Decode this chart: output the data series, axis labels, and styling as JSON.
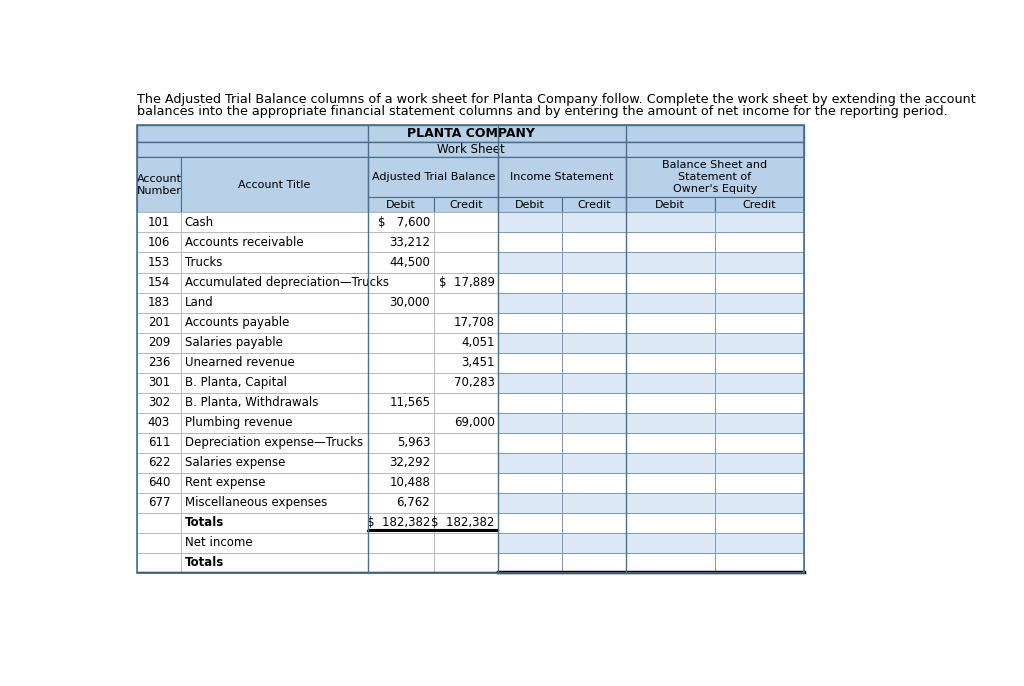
{
  "intro_text_line1": "The Adjusted Trial Balance columns of a work sheet for Planta Company follow. Complete the work sheet by extending the account",
  "intro_text_line2": "balances into the appropriate financial statement columns and by entering the amount of net income for the reporting period.",
  "company_title": "PLANTA COMPANY",
  "sheet_title": "Work Sheet",
  "header_bg": "#b8d0e8",
  "row_bg_white": "#ffffff",
  "row_bg_blue": "#dce8f5",
  "border_outer": "#4a6f8a",
  "border_inner_light": "#7a9ab8",
  "border_inner_gray": "#aaaaaa",
  "text_color": "#000000",
  "rows": [
    {
      "num": "101",
      "title": "Cash",
      "atb_d": "$   7,600",
      "atb_c": "",
      "bold": false
    },
    {
      "num": "106",
      "title": "Accounts receivable",
      "atb_d": "33,212",
      "atb_c": "",
      "bold": false
    },
    {
      "num": "153",
      "title": "Trucks",
      "atb_d": "44,500",
      "atb_c": "",
      "bold": false
    },
    {
      "num": "154",
      "title": "Accumulated depreciation—Trucks",
      "atb_d": "",
      "atb_c": "$  17,889",
      "bold": false
    },
    {
      "num": "183",
      "title": "Land",
      "atb_d": "30,000",
      "atb_c": "",
      "bold": false
    },
    {
      "num": "201",
      "title": "Accounts payable",
      "atb_d": "",
      "atb_c": "17,708",
      "bold": false
    },
    {
      "num": "209",
      "title": "Salaries payable",
      "atb_d": "",
      "atb_c": "4,051",
      "bold": false
    },
    {
      "num": "236",
      "title": "Unearned revenue",
      "atb_d": "",
      "atb_c": "3,451",
      "bold": false
    },
    {
      "num": "301",
      "title": "B. Planta, Capital",
      "atb_d": "",
      "atb_c": "70,283",
      "bold": false
    },
    {
      "num": "302",
      "title": "B. Planta, Withdrawals",
      "atb_d": "11,565",
      "atb_c": "",
      "bold": false
    },
    {
      "num": "403",
      "title": "Plumbing revenue",
      "atb_d": "",
      "atb_c": "69,000",
      "bold": false
    },
    {
      "num": "611",
      "title": "Depreciation expense—Trucks",
      "atb_d": "5,963",
      "atb_c": "",
      "bold": false
    },
    {
      "num": "622",
      "title": "Salaries expense",
      "atb_d": "32,292",
      "atb_c": "",
      "bold": false
    },
    {
      "num": "640",
      "title": "Rent expense",
      "atb_d": "10,488",
      "atb_c": "",
      "bold": false
    },
    {
      "num": "677",
      "title": "Miscellaneous expenses",
      "atb_d": "6,762",
      "atb_c": "",
      "bold": false
    },
    {
      "num": "",
      "title": "Totals",
      "atb_d": "$  182,382",
      "atb_c": "$  182,382",
      "bold": true,
      "is_totals": true
    },
    {
      "num": "",
      "title": "Net income",
      "atb_d": "",
      "atb_c": "",
      "bold": false,
      "is_net_income": true
    },
    {
      "num": "",
      "title": "Totals",
      "atb_d": "",
      "atb_c": "",
      "bold": true,
      "is_last_totals": true
    }
  ]
}
